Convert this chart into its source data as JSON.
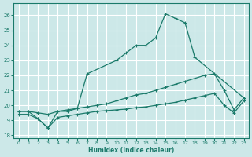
{
  "bg_color": "#cce8e8",
  "grid_color": "#ffffff",
  "line_color": "#1a7a6a",
  "xlabel": "Humidex (Indice chaleur)",
  "xlim": [
    -0.5,
    23.5
  ],
  "ylim": [
    17.8,
    26.8
  ],
  "xticks": [
    0,
    1,
    2,
    3,
    4,
    5,
    6,
    7,
    8,
    9,
    10,
    11,
    12,
    13,
    14,
    15,
    16,
    17,
    18,
    19,
    20,
    21,
    22,
    23
  ],
  "yticks": [
    18,
    19,
    20,
    21,
    22,
    23,
    24,
    25,
    26
  ],
  "series": [
    {
      "x": [
        0,
        1,
        2,
        3,
        4,
        5,
        6,
        7,
        10,
        11,
        12,
        13,
        14,
        15,
        16,
        17,
        18,
        23
      ],
      "y": [
        19.6,
        19.6,
        19.1,
        18.5,
        19.6,
        19.6,
        19.8,
        22.1,
        23.0,
        23.5,
        24.0,
        24.0,
        24.5,
        26.1,
        25.8,
        25.5,
        23.2,
        20.5
      ]
    },
    {
      "x": [
        0,
        1,
        2,
        3,
        4,
        5,
        6,
        7,
        8,
        9,
        10,
        11,
        12,
        13,
        14,
        15,
        16,
        17,
        18,
        19,
        20,
        21,
        22,
        23
      ],
      "y": [
        19.6,
        19.6,
        19.5,
        19.4,
        19.6,
        19.7,
        19.8,
        19.9,
        20.0,
        20.1,
        20.3,
        20.5,
        20.7,
        20.8,
        21.0,
        21.2,
        21.4,
        21.6,
        21.8,
        22.0,
        22.1,
        21.0,
        19.7,
        20.5
      ]
    },
    {
      "x": [
        0,
        1,
        2,
        3,
        4,
        5,
        6,
        7,
        8,
        9,
        10,
        11,
        12,
        13,
        14,
        15,
        16,
        17,
        18,
        19,
        20,
        21,
        22,
        23
      ],
      "y": [
        19.4,
        19.4,
        19.1,
        18.5,
        19.2,
        19.3,
        19.4,
        19.5,
        19.6,
        19.65,
        19.7,
        19.75,
        19.85,
        19.9,
        20.0,
        20.1,
        20.2,
        20.35,
        20.5,
        20.65,
        20.8,
        20.0,
        19.5,
        20.3
      ]
    }
  ]
}
